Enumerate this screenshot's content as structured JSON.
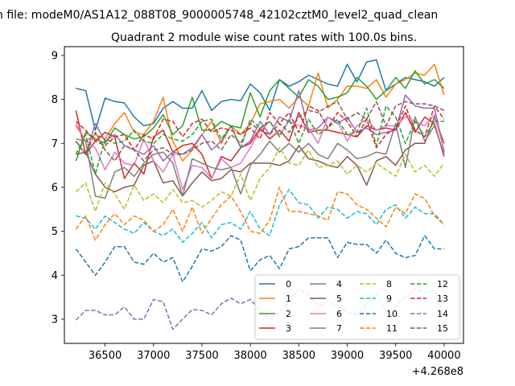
{
  "suptitle": "n file: modeM0/AS1A12_088T08_9000005748_42102cztM0_level2_quad_clean",
  "chart_data": {
    "type": "line",
    "title": "Quadrant 2 module wise count rates with 100.0s bins.",
    "xlabel": "",
    "ylabel": "",
    "x_offset_label": "+4.268e8",
    "xlim": [
      36080,
      40200
    ],
    "ylim": [
      2.45,
      9.2
    ],
    "xticks": [
      36500,
      37000,
      37500,
      38000,
      38500,
      39000,
      39500,
      40000
    ],
    "xtick_labels": [
      "36500",
      "37000",
      "37500",
      "38000",
      "38500",
      "39000",
      "39500",
      "40000"
    ],
    "yticks": [
      3,
      4,
      5,
      6,
      7,
      8,
      9
    ],
    "ytick_labels": [
      "3",
      "4",
      "5",
      "6",
      "7",
      "8",
      "9"
    ],
    "grid": false,
    "legend_position": "lower-right",
    "legend_columns": 4,
    "x": [
      36200,
      36300,
      36400,
      36500,
      36600,
      36700,
      36800,
      36900,
      37000,
      37100,
      37200,
      37300,
      37400,
      37500,
      37600,
      37700,
      37800,
      37900,
      38000,
      38100,
      38200,
      38300,
      38400,
      38500,
      38600,
      38700,
      38800,
      38900,
      39000,
      39100,
      39200,
      39300,
      39400,
      39500,
      39600,
      39700,
      39800,
      39900,
      40000
    ],
    "series": [
      {
        "name": "0",
        "color": "#1f77b4",
        "dash": "solid",
        "values": [
          8.25,
          8.2,
          7.3,
          8.03,
          7.95,
          7.92,
          7.6,
          7.4,
          7.45,
          7.8,
          7.95,
          7.8,
          7.8,
          8.2,
          7.75,
          7.95,
          8.0,
          7.97,
          8.35,
          8.15,
          7.75,
          8.45,
          8.3,
          8.4,
          8.55,
          8.45,
          8.35,
          8.3,
          8.8,
          8.4,
          8.85,
          8.9,
          8.2,
          8.35,
          8.5,
          8.45,
          8.4,
          8.3,
          8.5
        ]
      },
      {
        "name": "1",
        "color": "#ff7f0e",
        "dash": "solid",
        "values": [
          7.4,
          7.05,
          7.2,
          7.1,
          7.45,
          7.7,
          7.25,
          7.2,
          7.5,
          8.05,
          7.05,
          6.6,
          6.85,
          7.2,
          7.5,
          7.0,
          7.4,
          7.2,
          7.45,
          7.9,
          7.95,
          8.0,
          7.8,
          8.05,
          7.85,
          8.6,
          7.8,
          8.0,
          8.3,
          8.3,
          8.25,
          8.45,
          8.05,
          8.35,
          8.45,
          8.6,
          8.55,
          8.8,
          8.1
        ]
      },
      {
        "name": "2",
        "color": "#2ca02c",
        "dash": "solid",
        "values": [
          6.6,
          7.25,
          7.1,
          7.0,
          7.35,
          7.2,
          7.1,
          7.15,
          7.35,
          7.65,
          7.2,
          7.4,
          8.05,
          7.3,
          7.3,
          7.5,
          7.4,
          7.35,
          8.15,
          7.6,
          8.2,
          8.45,
          8.25,
          8.05,
          8.45,
          8.3,
          8.0,
          8.05,
          8.15,
          8.5,
          8.3,
          8.0,
          8.2,
          8.5,
          8.25,
          8.65,
          8.35,
          8.45,
          8.25
        ]
      },
      {
        "name": "3",
        "color": "#d62728",
        "dash": "solid",
        "values": [
          7.75,
          6.75,
          7.05,
          7.25,
          7.15,
          6.2,
          6.55,
          6.3,
          7.15,
          7.3,
          6.8,
          6.95,
          7.0,
          6.75,
          6.2,
          6.7,
          6.6,
          6.9,
          7.0,
          7.35,
          7.1,
          7.3,
          7.05,
          7.7,
          7.25,
          7.3,
          7.3,
          7.25,
          7.2,
          7.15,
          7.4,
          7.3,
          7.35,
          7.3,
          7.7,
          7.25,
          7.6,
          7.45,
          6.7
        ]
      },
      {
        "name": "4",
        "color": "#9467bd",
        "dash": "solid",
        "values": [
          7.05,
          6.75,
          7.45,
          7.05,
          7.2,
          6.95,
          6.85,
          6.75,
          6.95,
          6.6,
          6.8,
          6.75,
          6.9,
          7.2,
          6.85,
          7.05,
          7.4,
          6.9,
          7.05,
          7.5,
          7.2,
          7.6,
          7.5,
          8.2,
          7.3,
          7.35,
          7.6,
          7.45,
          7.6,
          7.25,
          7.35,
          7.2,
          7.25,
          7.3,
          8.1,
          7.85,
          7.8,
          7.8,
          6.8
        ]
      },
      {
        "name": "5",
        "color": "#8c564b",
        "dash": "solid",
        "values": [
          6.75,
          6.8,
          6.3,
          6.0,
          5.9,
          6.0,
          6.05,
          6.5,
          6.6,
          6.1,
          6.15,
          5.8,
          6.1,
          6.35,
          6.15,
          6.2,
          6.4,
          6.35,
          6.55,
          6.55,
          6.55,
          6.5,
          6.6,
          6.95,
          6.65,
          6.6,
          6.5,
          6.45,
          6.7,
          6.5,
          6.05,
          6.6,
          6.7,
          6.5,
          6.85,
          7.0,
          7.0,
          7.6,
          7.0
        ]
      },
      {
        "name": "6",
        "color": "#e377c2",
        "dash": "solid",
        "values": [
          7.45,
          7.05,
          6.9,
          6.4,
          6.8,
          6.55,
          6.5,
          7.1,
          6.6,
          6.35,
          6.75,
          5.95,
          6.5,
          6.45,
          6.2,
          6.65,
          6.45,
          6.55,
          6.9,
          7.3,
          7.5,
          7.2,
          7.5,
          7.4,
          7.35,
          7.0,
          7.6,
          7.5,
          7.05,
          7.4,
          7.55,
          7.3,
          7.4,
          7.4,
          7.6,
          7.5,
          7.4,
          7.65,
          6.85
        ]
      },
      {
        "name": "7",
        "color": "#7f7f7f",
        "dash": "solid",
        "values": [
          7.1,
          7.05,
          5.8,
          5.75,
          6.35,
          6.45,
          6.25,
          6.55,
          6.75,
          6.8,
          6.55,
          5.8,
          6.65,
          6.55,
          6.45,
          6.4,
          6.45,
          5.85,
          6.5,
          6.75,
          7.05,
          6.8,
          7.0,
          6.8,
          7.0,
          6.75,
          6.65,
          7.0,
          6.85,
          6.65,
          6.7,
          6.8,
          6.75,
          7.45,
          6.45,
          7.6,
          7.05,
          7.4,
          6.75
        ]
      },
      {
        "name": "8",
        "color": "#bcbd22",
        "dash": "dashed",
        "values": [
          5.9,
          6.1,
          5.45,
          6.1,
          5.85,
          5.5,
          6.05,
          5.7,
          5.85,
          5.65,
          5.95,
          5.65,
          5.7,
          5.55,
          5.7,
          5.9,
          5.8,
          6.3,
          5.7,
          6.2,
          6.45,
          6.9,
          6.55,
          6.5,
          6.85,
          6.45,
          6.5,
          6.6,
          6.3,
          6.5,
          6.35,
          6.55,
          6.4,
          6.25,
          6.75,
          6.35,
          6.5,
          6.25,
          6.55
        ]
      },
      {
        "name": "9",
        "color": "#17becf",
        "dash": "dashed",
        "values": [
          5.35,
          5.3,
          5.05,
          5.35,
          5.2,
          5.05,
          4.95,
          5.2,
          5.0,
          4.9,
          5.05,
          4.75,
          4.95,
          5.2,
          4.85,
          5.15,
          5.2,
          5.05,
          5.45,
          5.05,
          4.9,
          5.6,
          5.95,
          5.65,
          5.6,
          5.3,
          5.55,
          5.5,
          5.3,
          5.45,
          5.4,
          5.15,
          5.5,
          5.6,
          5.3,
          5.55,
          5.4,
          5.4,
          5.15
        ]
      },
      {
        "name": "10",
        "color": "#1f77b4",
        "dash": "dashed",
        "values": [
          4.6,
          4.3,
          4.0,
          4.3,
          4.65,
          4.65,
          4.3,
          4.25,
          4.5,
          4.3,
          4.4,
          3.85,
          4.2,
          4.6,
          4.55,
          4.65,
          4.9,
          4.8,
          4.1,
          4.35,
          4.45,
          4.15,
          4.6,
          4.65,
          4.85,
          4.85,
          4.85,
          4.4,
          4.75,
          4.7,
          4.7,
          4.5,
          4.8,
          4.5,
          4.4,
          4.45,
          4.9,
          4.6,
          4.6
        ]
      },
      {
        "name": "11",
        "color": "#ff7f0e",
        "dash": "dashed",
        "values": [
          5.05,
          5.35,
          4.8,
          5.15,
          5.4,
          5.15,
          5.35,
          5.25,
          5.0,
          5.15,
          5.5,
          5.0,
          5.55,
          4.95,
          5.3,
          5.6,
          5.8,
          5.45,
          5.0,
          4.95,
          5.25,
          6.0,
          5.45,
          5.45,
          5.4,
          5.35,
          5.25,
          5.9,
          5.85,
          5.6,
          5.5,
          5.3,
          5.1,
          5.55,
          5.4,
          5.85,
          5.75,
          5.35,
          5.15
        ]
      },
      {
        "name": "12",
        "color": "#2ca02c",
        "dash": "dashed",
        "values": [
          6.75,
          7.2,
          6.3,
          7.1,
          7.0,
          7.05,
          7.3,
          7.05,
          7.0,
          7.2,
          7.1,
          7.05,
          7.2,
          7.5,
          7.55,
          7.1,
          7.4,
          6.9,
          7.55,
          7.35,
          7.5,
          7.15,
          7.55,
          7.0,
          7.55,
          7.2,
          7.35,
          7.55,
          7.2,
          7.25,
          7.8,
          6.95,
          7.85,
          7.6,
          7.0,
          7.5,
          7.15,
          7.5,
          7.5
        ]
      },
      {
        "name": "13",
        "color": "#d62728",
        "dash": "dashed",
        "values": [
          7.5,
          7.3,
          7.05,
          6.95,
          7.15,
          7.2,
          6.85,
          7.2,
          7.1,
          7.55,
          7.5,
          7.15,
          7.45,
          7.55,
          7.25,
          7.35,
          7.3,
          7.2,
          7.35,
          7.1,
          7.7,
          7.45,
          7.7,
          7.25,
          7.85,
          7.75,
          7.35,
          7.7,
          7.5,
          7.15,
          7.55,
          6.9,
          7.2,
          7.35,
          7.85,
          7.3,
          7.15,
          7.85,
          7.55
        ]
      },
      {
        "name": "14",
        "color": "#9467bd",
        "dash": "dashed",
        "values": [
          2.98,
          3.2,
          3.2,
          3.1,
          3.1,
          3.28,
          3.0,
          3.0,
          3.45,
          3.4,
          2.77,
          3.0,
          3.22,
          3.2,
          3.1,
          3.35,
          3.48,
          3.35,
          3.45,
          3.2,
          3.0,
          3.15,
          3.4,
          3.7,
          3.55,
          3.3,
          3.4,
          3.3,
          3.15,
          3.1,
          3.35,
          3.6,
          3.15,
          3.3,
          3.5,
          3.7,
          3.6,
          3.65,
          3.05
        ]
      },
      {
        "name": "15",
        "color": "#8c564b",
        "dash": "dashed",
        "values": [
          7.05,
          6.75,
          7.25,
          6.85,
          6.6,
          6.95,
          6.85,
          6.6,
          6.85,
          6.9,
          6.75,
          6.75,
          6.85,
          7.0,
          7.05,
          6.85,
          7.2,
          7.0,
          7.45,
          7.3,
          7.2,
          7.45,
          7.25,
          7.6,
          7.75,
          7.7,
          7.85,
          7.95,
          7.55,
          7.7,
          7.55,
          7.95,
          7.4,
          7.85,
          7.95,
          7.9,
          7.9,
          7.85,
          7.75
        ]
      }
    ]
  }
}
